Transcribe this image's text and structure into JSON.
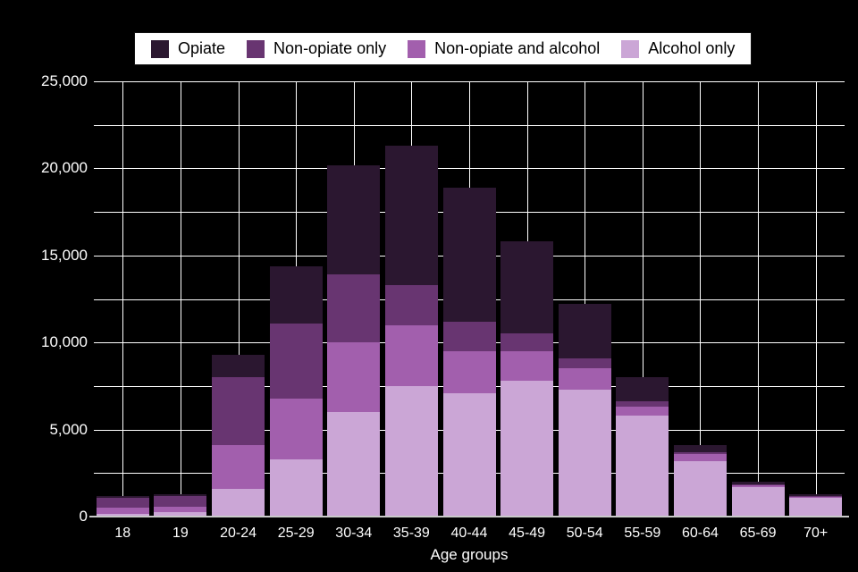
{
  "chart_data": {
    "type": "bar",
    "stacked": true,
    "title": "",
    "xlabel": "Age groups",
    "ylabel": "",
    "ylim": [
      0,
      25000
    ],
    "ytick_step": 5000,
    "grid_step": 2500,
    "grid": true,
    "legend_position": "top",
    "yticks": [
      "0",
      "5,000",
      "10,000",
      "15,000",
      "20,000",
      "25,000"
    ],
    "categories": [
      "18",
      "19",
      "20-24",
      "25-29",
      "30-34",
      "35-39",
      "40-44",
      "45-49",
      "50-54",
      "55-59",
      "60-64",
      "65-69",
      "70+"
    ],
    "series": [
      {
        "name": "Alcohol only",
        "color": "#cba6d6",
        "values": [
          150,
          250,
          1600,
          3300,
          6000,
          7500,
          7100,
          7800,
          7300,
          5800,
          3200,
          1700,
          1100
        ]
      },
      {
        "name": "Non-opiate and alcohol",
        "color": "#a25fad",
        "values": [
          350,
          300,
          2500,
          3500,
          4000,
          3500,
          2400,
          1700,
          1200,
          500,
          400,
          100,
          50
        ]
      },
      {
        "name": "Non-opiate only",
        "color": "#683571",
        "values": [
          600,
          650,
          3900,
          4300,
          3900,
          2300,
          1700,
          1000,
          600,
          300,
          100,
          50,
          50
        ]
      },
      {
        "name": "Opiate",
        "color": "#2b1730",
        "values": [
          100,
          100,
          1300,
          3300,
          6300,
          8000,
          7700,
          5300,
          3100,
          1400,
          400,
          150,
          100
        ]
      }
    ],
    "totals": [
      1200,
      1300,
      9300,
      14400,
      20200,
      21300,
      18900,
      15800,
      12200,
      8000,
      4100,
      2000,
      1300
    ],
    "legend": [
      {
        "label": "Opiate",
        "color": "#2b1730"
      },
      {
        "label": "Non-opiate only",
        "color": "#683571"
      },
      {
        "label": "Non-opiate and alcohol",
        "color": "#a25fad"
      },
      {
        "label": "Alcohol only",
        "color": "#cba6d6"
      }
    ]
  },
  "colors": {
    "background": "#000000",
    "grid": "#ffffff",
    "axis_line": "#c9c9c9",
    "tick_text": "#ffffff",
    "legend_bg": "#ffffff",
    "legend_text": "#000000"
  }
}
